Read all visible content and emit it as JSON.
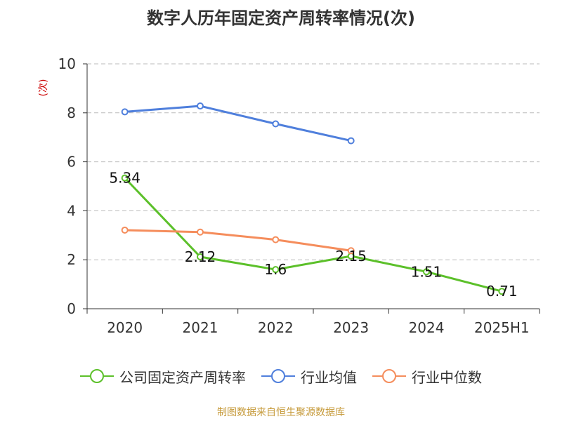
{
  "chart_data": {
    "type": "line",
    "title": "数字人历年固定资产周转率情况(次)",
    "ylabel": "(次)",
    "xlabel": "",
    "categories": [
      "2020",
      "2021",
      "2022",
      "2023",
      "2024",
      "2025H1"
    ],
    "ylim": [
      0,
      10
    ],
    "yticks": [
      0,
      2,
      4,
      6,
      8,
      10
    ],
    "grid": true,
    "legend_position": "bottom",
    "series": [
      {
        "name": "公司固定资产周转率",
        "color": "#5cc02a",
        "values": [
          5.34,
          2.12,
          1.6,
          2.15,
          1.51,
          0.71
        ],
        "labels": [
          "5.34",
          "2.12",
          "1.6",
          "2.15",
          "1.51",
          "0.71"
        ]
      },
      {
        "name": "行业均值",
        "color": "#4f7fdc",
        "values": [
          8.04,
          8.28,
          7.55,
          6.86,
          null,
          null
        ]
      },
      {
        "name": "行业中位数",
        "color": "#f58d5c",
        "values": [
          3.21,
          3.13,
          2.82,
          2.37,
          null,
          null
        ]
      }
    ]
  },
  "source": "制图数据来自恒生聚源数据库"
}
